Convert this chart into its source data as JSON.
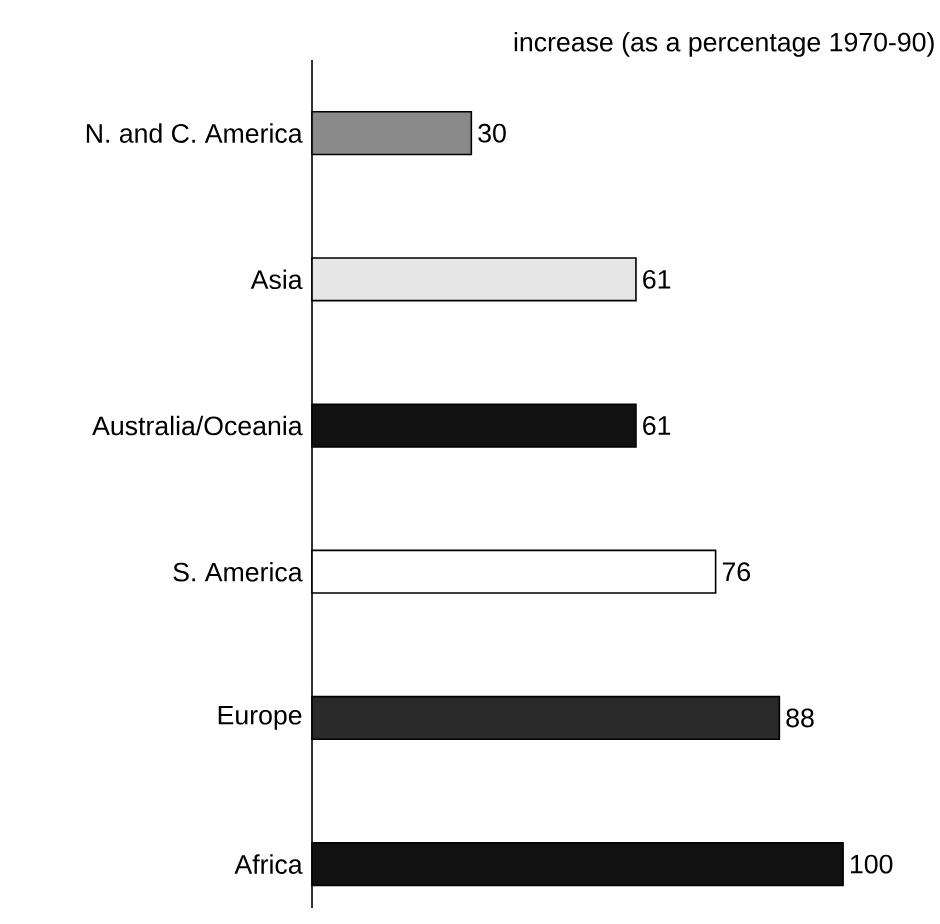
{
  "chart_data": {
    "type": "bar",
    "orientation": "horizontal",
    "title": "increase (as a percentage 1970-90)",
    "categories": [
      "N. and C. America",
      "Asia",
      "Australia/Oceania",
      "S. America",
      "Europe",
      "Africa"
    ],
    "values": [
      30,
      61,
      61,
      76,
      88,
      100
    ],
    "colors": [
      "#8a8a8a",
      "#e6e6e6",
      "#111111",
      "#ffffff",
      "#2a2a2a",
      "#111111"
    ],
    "data_labels": true
  }
}
